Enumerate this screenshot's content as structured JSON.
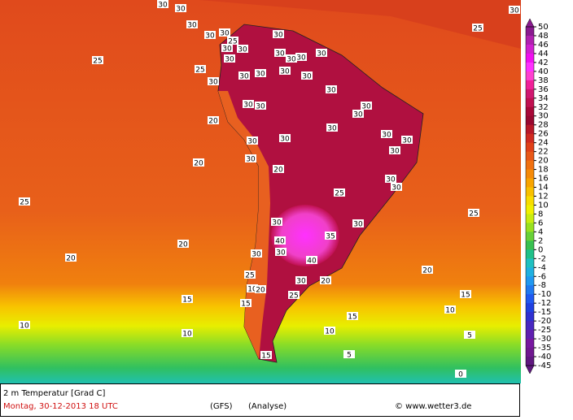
{
  "map": {
    "contour_labels": [
      30,
      30,
      30,
      30,
      30,
      25,
      30,
      30,
      30,
      30,
      30,
      30,
      30,
      30,
      30,
      30,
      30,
      30,
      30,
      30,
      30,
      30,
      30,
      30,
      30,
      30,
      30,
      30,
      30,
      30,
      30,
      30,
      20,
      30,
      30,
      20,
      25,
      30,
      35,
      40,
      40,
      30,
      30,
      20,
      30,
      25,
      10,
      20,
      25,
      15,
      15,
      25,
      25,
      25,
      20,
      25,
      20,
      20,
      25,
      20,
      15,
      10,
      15,
      10,
      5,
      5,
      10,
      10,
      15,
      30,
      0
    ]
  },
  "legend": {
    "levels": [
      50,
      48,
      46,
      44,
      42,
      40,
      38,
      36,
      34,
      32,
      30,
      28,
      26,
      24,
      22,
      20,
      18,
      16,
      14,
      12,
      10,
      8,
      6,
      4,
      2,
      0,
      -2,
      -4,
      -6,
      -8,
      -10,
      -12,
      -15,
      -20,
      -25,
      -30,
      -35,
      -40,
      -45
    ],
    "colors": [
      "#8a1a90",
      "#b020b0",
      "#d020d0",
      "#f010f0",
      "#ff30ff",
      "#ff40d0",
      "#f02098",
      "#d01870",
      "#c01050",
      "#a80838",
      "#980830",
      "#b81828",
      "#d02a20",
      "#e04018",
      "#e85818",
      "#f07010",
      "#f58a08",
      "#f8a400",
      "#f8c000",
      "#f8dc00",
      "#f0f000",
      "#c8ec10",
      "#98e020",
      "#68d038",
      "#38c050",
      "#20c088",
      "#20c0c0",
      "#20b0e0",
      "#2098f0",
      "#2078f0",
      "#2058f0",
      "#2040e0",
      "#3030d0",
      "#4828c0",
      "#6020b0",
      "#7818a0",
      "#701890",
      "#601880"
    ]
  },
  "footer": {
    "variable": "2 m Temperatur [Grad C]",
    "date": "Montag, 30-12-2013  18 UTC",
    "model": "(GFS)",
    "run": "(Analyse)",
    "credit": "© www.wetter3.de"
  }
}
